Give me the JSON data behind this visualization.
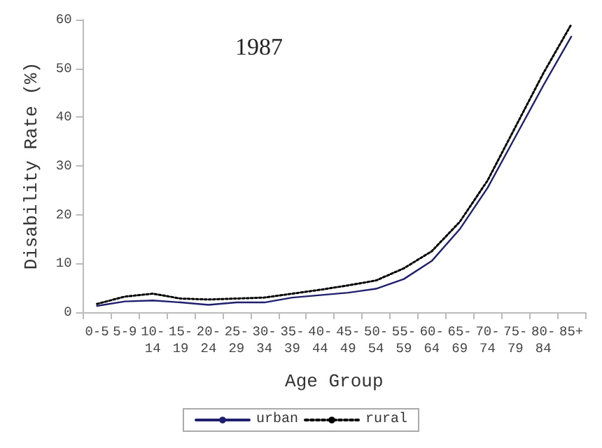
{
  "chart_data": {
    "type": "line",
    "title": "1987",
    "xlabel": "Age Group",
    "ylabel": "Disability Rate (%)",
    "categories": [
      "0-5",
      "5-9",
      "10-\n14",
      "15-\n19",
      "20-\n24",
      "25-\n29",
      "30-\n34",
      "35-\n39",
      "40-\n44",
      "45-\n49",
      "50-\n54",
      "55-\n59",
      "60-\n64",
      "65-\n69",
      "70-\n74",
      "75-\n79",
      "80-\n84",
      "85+"
    ],
    "series": [
      {
        "name": "urban",
        "color": "#1f1f6e",
        "line_style": "solid",
        "values": [
          1.3,
          2.2,
          2.4,
          2.0,
          1.5,
          2.0,
          2.0,
          3.0,
          3.5,
          4.0,
          4.8,
          6.8,
          10.5,
          17,
          25.5,
          36,
          46.5,
          56.5
        ]
      },
      {
        "name": "rural",
        "color": "#000000",
        "line_style": "dotted",
        "values": [
          1.7,
          3.2,
          3.8,
          2.8,
          2.6,
          2.8,
          3.0,
          3.8,
          4.6,
          5.5,
          6.5,
          9.0,
          12.5,
          18.5,
          27,
          38,
          49,
          59
        ]
      }
    ],
    "ylim": [
      0,
      60
    ],
    "yticks": [
      0,
      10,
      20,
      30,
      40,
      50,
      60
    ],
    "grid": false,
    "legend": "bottom",
    "marker": "none"
  }
}
